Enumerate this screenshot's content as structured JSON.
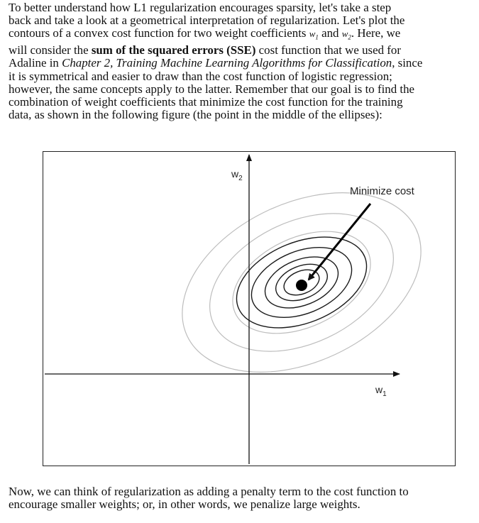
{
  "intro": {
    "l1": "To better understand how L1 regularization encourages sparsity, let's take a step",
    "l2": "back and take a look at a geometrical interpretation of regularization. Let's plot the",
    "l3_pre": "contours of a convex cost function for two weight coefficients ",
    "w1": "w",
    "w1_sub": "1",
    "and": " and ",
    "w2": "w",
    "w2_sub": "2",
    "l3_post": ". Here, we",
    "l4_pre": "will consider the ",
    "l4_bold": "sum of the squared errors (SSE)",
    "l4_post": " cost function that we used for",
    "l5_pre": "Adaline in ",
    "l5_ital": "Chapter 2, Training Machine Learning Algorithms for Classification",
    "l5_post": ", since",
    "l6": "it is symmetrical and easier to draw than the cost function of logistic regression;",
    "l7": "however, the same concepts apply to the latter. Remember that our goal is to find the",
    "l8": "combination of weight coefficients that minimize the cost function for the training",
    "l9": "data, as shown in the following figure (the point in the middle of the ellipses):"
  },
  "figure": {
    "y_axis_label": "w",
    "y_axis_sub": "2",
    "x_axis_label": "w",
    "x_axis_sub": "1",
    "annotation": "Minimize cost"
  },
  "outro": {
    "l1": "Now, we can think of regularization as adding a penalty term to the cost function to",
    "l2": "encourage smaller weights; or, in other words, we penalize large weights."
  }
}
